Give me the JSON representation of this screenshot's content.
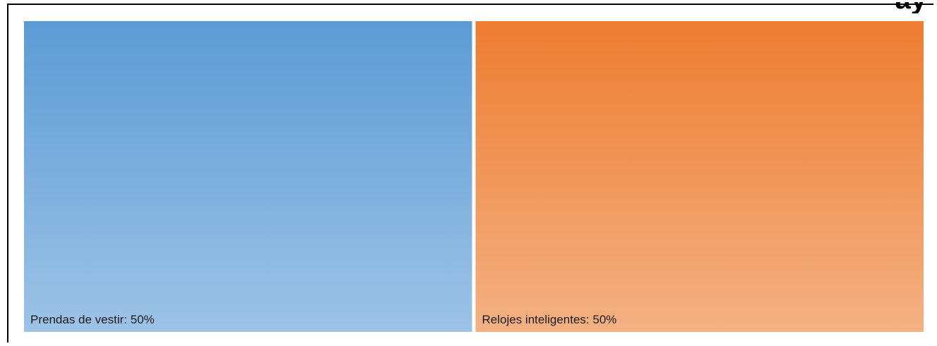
{
  "title_fragment": "ay",
  "chart_data": {
    "type": "treemap",
    "title": "",
    "items": [
      {
        "name": "Prendas de vestir",
        "value": 50,
        "label": "Prendas de vestir: 50%",
        "color_top": "#5b9bd5",
        "color_bottom": "#9dc3e6"
      },
      {
        "name": "Relojes inteligentes",
        "value": 50,
        "label": "Relojes inteligentes: 50%",
        "color_top": "#ed7d31",
        "color_bottom": "#f4b183"
      }
    ]
  }
}
